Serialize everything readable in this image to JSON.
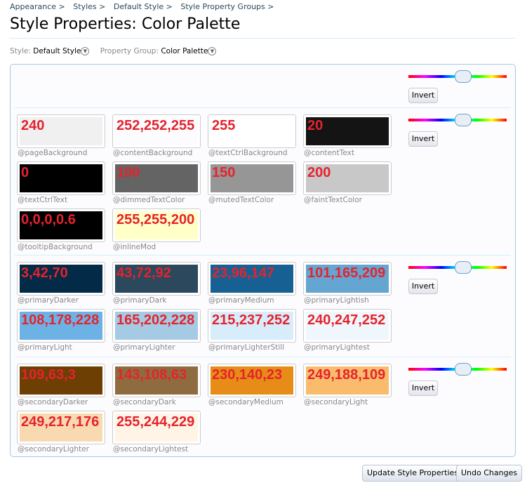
{
  "breadcrumbs": [
    "Appearance >",
    "Styles >",
    "Default Style >",
    "Style Property Groups >"
  ],
  "title": "Style Properties: Color Palette",
  "filters": {
    "style_label": "Style:",
    "style_value": "Default Style",
    "group_label": "Property Group:",
    "group_value": "Color Palette"
  },
  "invert_label": "Invert",
  "hue_slider_value": 0.55,
  "groups": [
    [],
    [
      {
        "name": "@pageBackground",
        "color": "#f0f0f0",
        "note": "240"
      },
      {
        "name": "@contentBackground",
        "color": "#fcfcff",
        "note": "252,252,255"
      },
      {
        "name": "@textCtrlBackground",
        "color": "#ffffff",
        "note": "255"
      },
      {
        "name": "@contentText",
        "color": "#141414",
        "note": "20"
      },
      {
        "name": "@textCtrlText",
        "color": "#000000",
        "note": "0"
      },
      {
        "name": "@dimmedTextColor",
        "color": "#646464",
        "note": "100"
      },
      {
        "name": "@mutedTextColor",
        "color": "#969696",
        "note": "150"
      },
      {
        "name": "@faintTextColor",
        "color": "#c8c8c8",
        "note": "200"
      },
      {
        "name": "@tooltipBackground",
        "color": "#000000",
        "note": "0,0,0,0.6"
      },
      {
        "name": "@inlineMod",
        "color": "#ffffc8",
        "note": "255,255,200"
      }
    ],
    [
      {
        "name": "@primaryDarker",
        "color": "#032a46",
        "note": "3,42,70"
      },
      {
        "name": "@primaryDark",
        "color": "#2b485c",
        "note": "43,72,92"
      },
      {
        "name": "@primaryMedium",
        "color": "#176093",
        "note": "23,96,147"
      },
      {
        "name": "@primaryLightish",
        "color": "#65a5d1",
        "note": "101,165,209"
      },
      {
        "name": "@primaryLight",
        "color": "#6cb2e4",
        "note": "108,178,228"
      },
      {
        "name": "@primaryLighter",
        "color": "#a5cae4",
        "note": "165,202,228"
      },
      {
        "name": "@primaryLighterStill",
        "color": "#d7edfc",
        "note": "215,237,252"
      },
      {
        "name": "@primaryLightest",
        "color": "#f0f7fc",
        "note": "240,247,252"
      }
    ],
    [
      {
        "name": "@secondaryDarker",
        "color": "#6d3f03",
        "note": "109,63,3"
      },
      {
        "name": "@secondaryDark",
        "color": "#8f6c3f",
        "note": "143,108,63"
      },
      {
        "name": "@secondaryMedium",
        "color": "#e68c17",
        "note": "230,140,23"
      },
      {
        "name": "@secondaryLight",
        "color": "#f9bc6d",
        "note": "249,188,109"
      },
      {
        "name": "@secondaryLighter",
        "color": "#f9d9b0",
        "note": "249,217,176"
      },
      {
        "name": "@secondaryLightest",
        "color": "#fff4e5",
        "note": "255,244,229"
      }
    ]
  ],
  "buttons": {
    "update": "Update Style Properties",
    "undo": "Undo Changes"
  }
}
